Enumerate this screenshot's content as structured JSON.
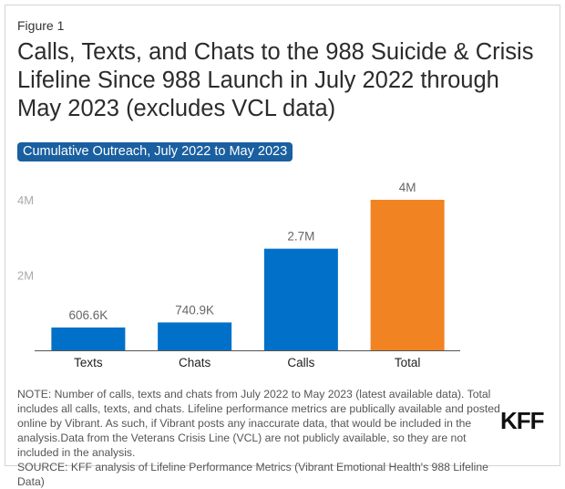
{
  "figure_label": "Figure 1",
  "title": "Calls, Texts, and Chats to the 988 Suicide & Crisis Lifeline Since 988 Launch in July 2022 through May 2023 (excludes VCL data)",
  "subtitle": "Cumulative Outreach, July 2022 to May 2023",
  "chart_data": {
    "type": "bar",
    "categories": [
      "Texts",
      "Chats",
      "Calls",
      "Total"
    ],
    "values": [
      606600,
      740900,
      2700000,
      4000000
    ],
    "data_labels": [
      "606.6K",
      "740.9K",
      "2.7M",
      "4M"
    ],
    "colors": [
      "#0070c9",
      "#0070c9",
      "#0070c9",
      "#f28322"
    ],
    "ylim": [
      0,
      4000000
    ],
    "yticks": [
      {
        "value": 2000000,
        "label": "2M"
      },
      {
        "value": 4000000,
        "label": "4M"
      }
    ],
    "grid": false,
    "xlabel": "",
    "ylabel": ""
  },
  "note": "NOTE: Number of calls, texts and chats from July 2022 to May 2023 (latest available data). Total includes all calls, texts, and chats. Lifeline performance metrics are publically available and posted online by Vibrant. As such, if Vibrant posts any inaccurate data, that would be included in the analysis.Data from the Veterans Crisis Line (VCL) are not publicly available, so they are not included in the analysis.",
  "source": "SOURCE: KFF analysis of Lifeline Performance Metrics (Vibrant Emotional Health's 988 Lifeline Data)",
  "logo": "KFF"
}
